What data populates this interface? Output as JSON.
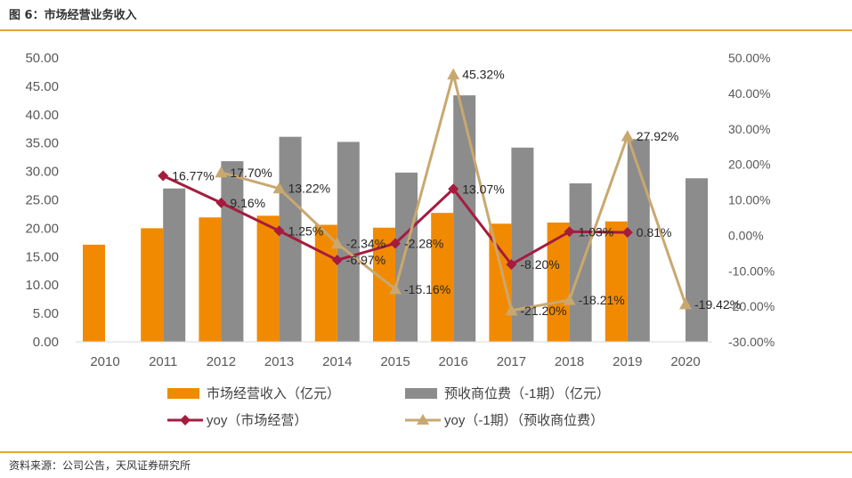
{
  "figure_title": "图 6：市场经营业务收入",
  "source_note": "资料来源：公司公告，天风证券研究所",
  "colors": {
    "orange": "#f18a00",
    "gray": "#8c8c8c",
    "maroon": "#a51c3f",
    "tan": "#c9a870",
    "accent_rule": "#e8a33d"
  },
  "chart_data": {
    "type": "bar",
    "categories": [
      "2010",
      "2011",
      "2012",
      "2013",
      "2014",
      "2015",
      "2016",
      "2017",
      "2018",
      "2019",
      "2020"
    ],
    "y_left": {
      "min": 0,
      "max": 50,
      "ticks": [
        "0.00",
        "5.00",
        "10.00",
        "15.00",
        "20.00",
        "25.00",
        "30.00",
        "35.00",
        "40.00",
        "45.00",
        "50.00"
      ]
    },
    "y_right": {
      "min": -30,
      "max": 50,
      "ticks": [
        "-30.00%",
        "-20.00%",
        "-10.00%",
        "0.00%",
        "10.00%",
        "20.00%",
        "30.00%",
        "40.00%",
        "50.00%"
      ]
    },
    "series": [
      {
        "name": "市场经营收入（亿元）",
        "type": "bar",
        "axis": "left",
        "color": "#f18a00",
        "values": [
          17.1,
          20.0,
          21.9,
          22.2,
          20.6,
          20.1,
          22.7,
          20.8,
          21.0,
          21.2,
          null
        ]
      },
      {
        "name": "预收商位费（-1期）（亿元）",
        "type": "bar",
        "axis": "left",
        "color": "#8c8c8c",
        "values": [
          null,
          27.0,
          31.8,
          36.1,
          35.2,
          29.8,
          43.4,
          34.2,
          27.9,
          35.7,
          28.8
        ]
      },
      {
        "name": "yoy（市场经营）",
        "type": "line",
        "axis": "right",
        "color": "#a51c3f",
        "marker": "diamond",
        "values": [
          null,
          16.77,
          9.16,
          1.25,
          -6.97,
          -2.28,
          13.07,
          -8.2,
          1.03,
          0.81,
          null
        ],
        "labels": [
          null,
          "16.77%",
          "9.16%",
          "1.25%",
          "-6.97%",
          "-2.28%",
          "13.07%",
          "-8.20%",
          "1.03%",
          "0.81%",
          null
        ]
      },
      {
        "name": "yoy（-1期）（预收商位费）",
        "type": "line",
        "axis": "right",
        "color": "#c9a870",
        "marker": "triangle",
        "values": [
          null,
          null,
          17.7,
          13.22,
          -2.34,
          -15.16,
          45.32,
          -21.2,
          -18.21,
          27.92,
          -19.42
        ],
        "labels": [
          null,
          null,
          "17.70%",
          "13.22%",
          "-2.34%",
          "-15.16%",
          "45.32%",
          "-21.20%",
          "-18.21%",
          "27.92%",
          "-19.42%"
        ]
      }
    ],
    "legend_position": "bottom",
    "grid": false
  }
}
